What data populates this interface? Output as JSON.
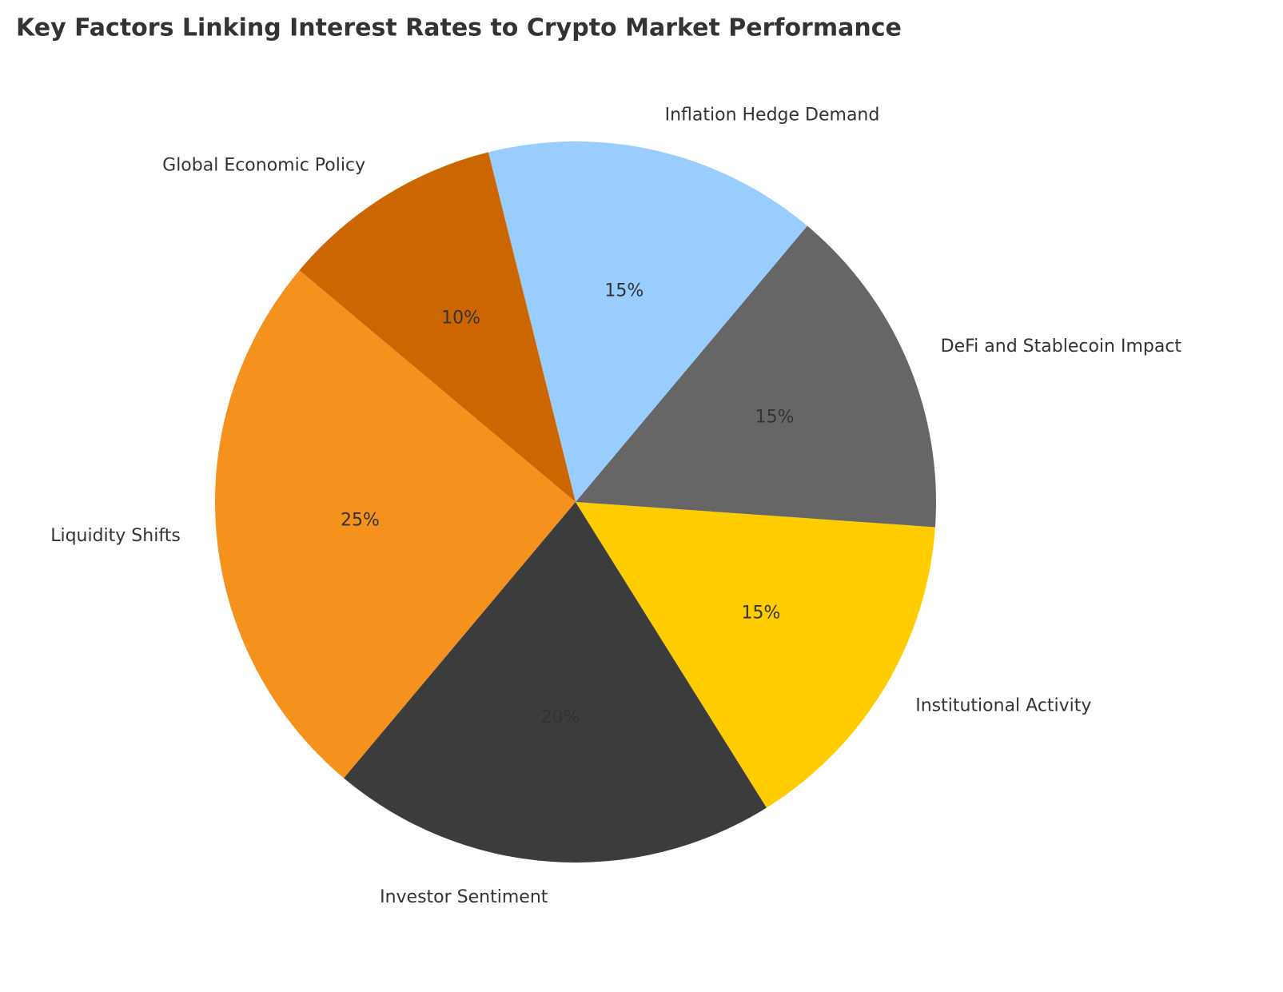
{
  "chart_data": {
    "type": "pie",
    "title": "Key Factors Linking Interest Rates to Crypto Market Performance",
    "categories": [
      "Liquidity Shifts",
      "Investor Sentiment",
      "Institutional Activity",
      "DeFi and Stablecoin Impact",
      "Inflation Hedge Demand",
      "Global Economic Policy"
    ],
    "values": [
      25,
      20,
      15,
      15,
      15,
      10
    ],
    "value_labels": [
      "25%",
      "20%",
      "15%",
      "15%",
      "15%",
      "10%"
    ],
    "colors": [
      "#f5921e",
      "#3c3c3c",
      "#ffcc00",
      "#666666",
      "#99ccff",
      "#cc6600"
    ]
  }
}
